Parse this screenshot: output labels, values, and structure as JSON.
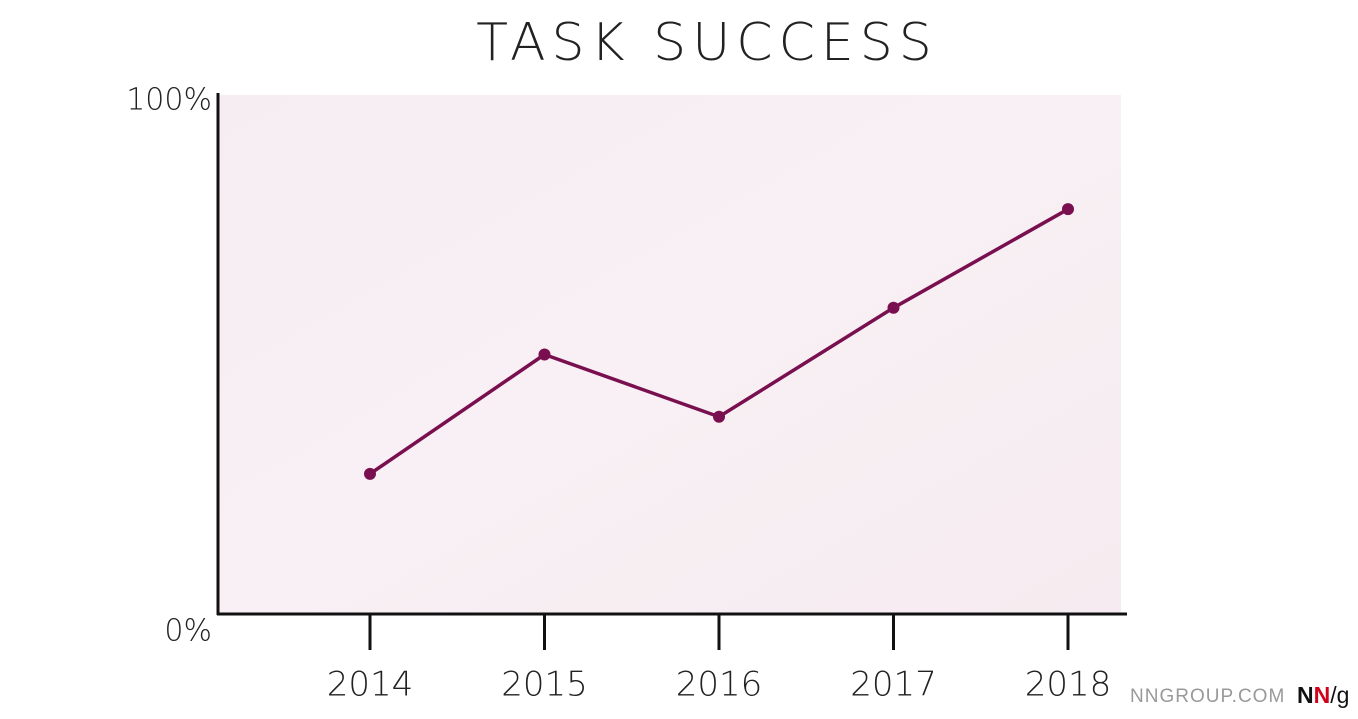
{
  "chart_data": {
    "type": "line",
    "title": "Task Success",
    "categories": [
      "2014",
      "2015",
      "2016",
      "2017",
      "2018"
    ],
    "values": [
      27,
      50,
      38,
      59,
      78
    ],
    "color": "#7a0f4f",
    "ylim": [
      0,
      100
    ],
    "yticks": [
      {
        "value": 0,
        "label": "0%"
      },
      {
        "value": 100,
        "label": "100%"
      }
    ],
    "grid": false
  },
  "footer": {
    "site": "NNGROUP.COM",
    "logo": [
      "N",
      "N",
      "/g"
    ]
  }
}
